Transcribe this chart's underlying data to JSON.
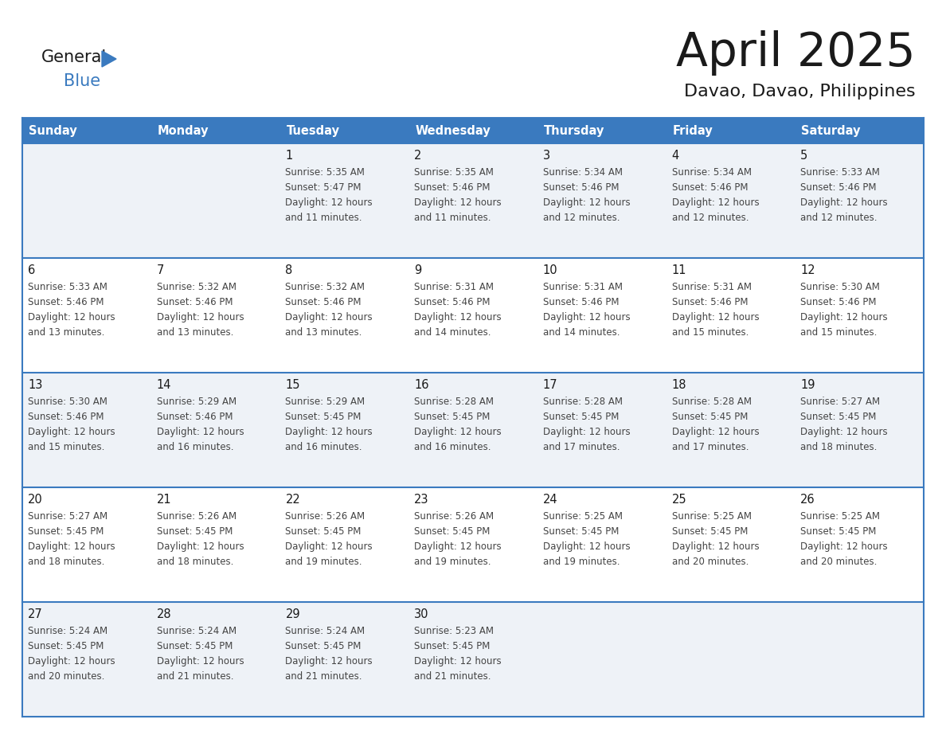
{
  "title": "April 2025",
  "subtitle": "Davao, Davao, Philippines",
  "header_bg": "#3a7abf",
  "header_text": "#ffffff",
  "row_bg_odd": "#eef2f7",
  "row_bg_even": "#ffffff",
  "border_color": "#3a7abf",
  "day_headers": [
    "Sunday",
    "Monday",
    "Tuesday",
    "Wednesday",
    "Thursday",
    "Friday",
    "Saturday"
  ],
  "title_color": "#1a1a1a",
  "subtitle_color": "#1a1a1a",
  "cell_text_color": "#444444",
  "day_num_color": "#1a1a1a",
  "logo_general_color": "#1a1a1a",
  "logo_blue_color": "#3a7abf",
  "logo_triangle_color": "#3a7abf",
  "weeks": [
    [
      {
        "day": "",
        "sunrise": "",
        "sunset": "",
        "daylight": ""
      },
      {
        "day": "",
        "sunrise": "",
        "sunset": "",
        "daylight": ""
      },
      {
        "day": "1",
        "sunrise": "5:35 AM",
        "sunset": "5:47 PM",
        "daylight": "12 hours and 11 minutes."
      },
      {
        "day": "2",
        "sunrise": "5:35 AM",
        "sunset": "5:46 PM",
        "daylight": "12 hours and 11 minutes."
      },
      {
        "day": "3",
        "sunrise": "5:34 AM",
        "sunset": "5:46 PM",
        "daylight": "12 hours and 12 minutes."
      },
      {
        "day": "4",
        "sunrise": "5:34 AM",
        "sunset": "5:46 PM",
        "daylight": "12 hours and 12 minutes."
      },
      {
        "day": "5",
        "sunrise": "5:33 AM",
        "sunset": "5:46 PM",
        "daylight": "12 hours and 12 minutes."
      }
    ],
    [
      {
        "day": "6",
        "sunrise": "5:33 AM",
        "sunset": "5:46 PM",
        "daylight": "12 hours and 13 minutes."
      },
      {
        "day": "7",
        "sunrise": "5:32 AM",
        "sunset": "5:46 PM",
        "daylight": "12 hours and 13 minutes."
      },
      {
        "day": "8",
        "sunrise": "5:32 AM",
        "sunset": "5:46 PM",
        "daylight": "12 hours and 13 minutes."
      },
      {
        "day": "9",
        "sunrise": "5:31 AM",
        "sunset": "5:46 PM",
        "daylight": "12 hours and 14 minutes."
      },
      {
        "day": "10",
        "sunrise": "5:31 AM",
        "sunset": "5:46 PM",
        "daylight": "12 hours and 14 minutes."
      },
      {
        "day": "11",
        "sunrise": "5:31 AM",
        "sunset": "5:46 PM",
        "daylight": "12 hours and 15 minutes."
      },
      {
        "day": "12",
        "sunrise": "5:30 AM",
        "sunset": "5:46 PM",
        "daylight": "12 hours and 15 minutes."
      }
    ],
    [
      {
        "day": "13",
        "sunrise": "5:30 AM",
        "sunset": "5:46 PM",
        "daylight": "12 hours and 15 minutes."
      },
      {
        "day": "14",
        "sunrise": "5:29 AM",
        "sunset": "5:46 PM",
        "daylight": "12 hours and 16 minutes."
      },
      {
        "day": "15",
        "sunrise": "5:29 AM",
        "sunset": "5:45 PM",
        "daylight": "12 hours and 16 minutes."
      },
      {
        "day": "16",
        "sunrise": "5:28 AM",
        "sunset": "5:45 PM",
        "daylight": "12 hours and 16 minutes."
      },
      {
        "day": "17",
        "sunrise": "5:28 AM",
        "sunset": "5:45 PM",
        "daylight": "12 hours and 17 minutes."
      },
      {
        "day": "18",
        "sunrise": "5:28 AM",
        "sunset": "5:45 PM",
        "daylight": "12 hours and 17 minutes."
      },
      {
        "day": "19",
        "sunrise": "5:27 AM",
        "sunset": "5:45 PM",
        "daylight": "12 hours and 18 minutes."
      }
    ],
    [
      {
        "day": "20",
        "sunrise": "5:27 AM",
        "sunset": "5:45 PM",
        "daylight": "12 hours and 18 minutes."
      },
      {
        "day": "21",
        "sunrise": "5:26 AM",
        "sunset": "5:45 PM",
        "daylight": "12 hours and 18 minutes."
      },
      {
        "day": "22",
        "sunrise": "5:26 AM",
        "sunset": "5:45 PM",
        "daylight": "12 hours and 19 minutes."
      },
      {
        "day": "23",
        "sunrise": "5:26 AM",
        "sunset": "5:45 PM",
        "daylight": "12 hours and 19 minutes."
      },
      {
        "day": "24",
        "sunrise": "5:25 AM",
        "sunset": "5:45 PM",
        "daylight": "12 hours and 19 minutes."
      },
      {
        "day": "25",
        "sunrise": "5:25 AM",
        "sunset": "5:45 PM",
        "daylight": "12 hours and 20 minutes."
      },
      {
        "day": "26",
        "sunrise": "5:25 AM",
        "sunset": "5:45 PM",
        "daylight": "12 hours and 20 minutes."
      }
    ],
    [
      {
        "day": "27",
        "sunrise": "5:24 AM",
        "sunset": "5:45 PM",
        "daylight": "12 hours and 20 minutes."
      },
      {
        "day": "28",
        "sunrise": "5:24 AM",
        "sunset": "5:45 PM",
        "daylight": "12 hours and 21 minutes."
      },
      {
        "day": "29",
        "sunrise": "5:24 AM",
        "sunset": "5:45 PM",
        "daylight": "12 hours and 21 minutes."
      },
      {
        "day": "30",
        "sunrise": "5:23 AM",
        "sunset": "5:45 PM",
        "daylight": "12 hours and 21 minutes."
      },
      {
        "day": "",
        "sunrise": "",
        "sunset": "",
        "daylight": ""
      },
      {
        "day": "",
        "sunrise": "",
        "sunset": "",
        "daylight": ""
      },
      {
        "day": "",
        "sunrise": "",
        "sunset": "",
        "daylight": ""
      }
    ]
  ]
}
